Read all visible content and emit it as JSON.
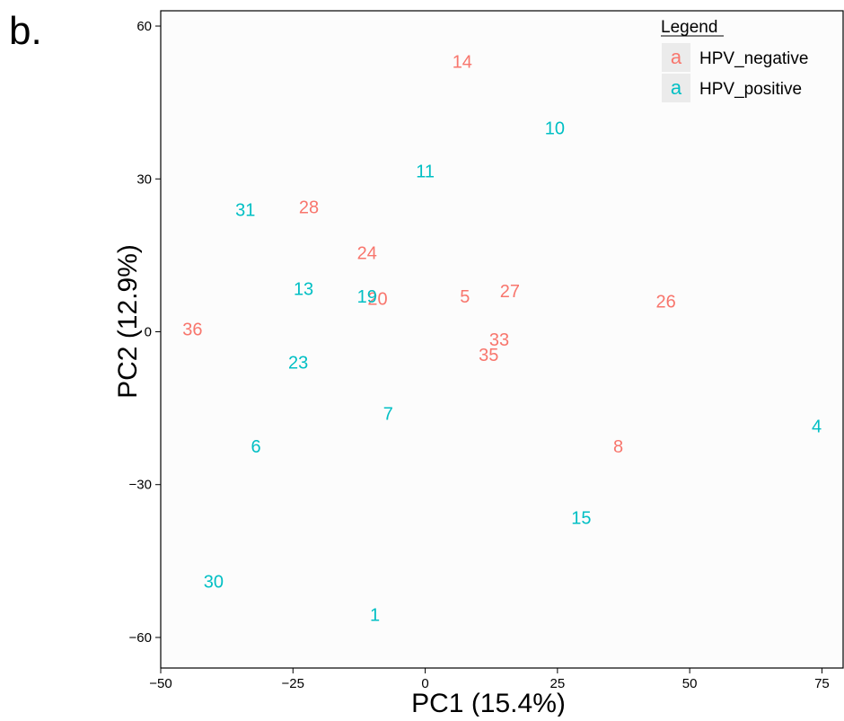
{
  "panel_label": "b.",
  "chart_data": {
    "type": "scatter",
    "xlabel": "PC1 (15.4%)",
    "ylabel": "PC2 (12.9%)",
    "xlim": [
      -50,
      79
    ],
    "ylim": [
      -66,
      63
    ],
    "x_ticks": [
      -50,
      -25,
      0,
      25,
      50,
      75
    ],
    "x_tick_labels": [
      "−50",
      "−25",
      "0",
      "25",
      "50",
      "75"
    ],
    "y_ticks": [
      -60,
      -30,
      0,
      30,
      60
    ],
    "y_tick_labels": [
      "−60",
      "−30",
      "0",
      "30",
      "60"
    ],
    "grid": false,
    "legend": {
      "title": "Legend",
      "position": "top-right",
      "key_glyph": "a",
      "entries": [
        {
          "label": "HPV_negative",
          "color": "#F8766D"
        },
        {
          "label": "HPV_positive",
          "color": "#00BFC4"
        }
      ]
    },
    "series": [
      {
        "name": "HPV_negative",
        "color": "#F8766D",
        "points": [
          {
            "label": "14",
            "x": 7,
            "y": 53
          },
          {
            "label": "28",
            "x": -22,
            "y": 24.5
          },
          {
            "label": "24",
            "x": -11,
            "y": 15.5
          },
          {
            "label": "20",
            "x": -9,
            "y": 6.5
          },
          {
            "label": "5",
            "x": 7.5,
            "y": 7
          },
          {
            "label": "27",
            "x": 16,
            "y": 8
          },
          {
            "label": "26",
            "x": 45.5,
            "y": 6
          },
          {
            "label": "36",
            "x": -44,
            "y": 0.5
          },
          {
            "label": "33",
            "x": 14,
            "y": -1.5
          },
          {
            "label": "35",
            "x": 12,
            "y": -4.5
          },
          {
            "label": "8",
            "x": 36.5,
            "y": -22.5
          }
        ]
      },
      {
        "name": "HPV_positive",
        "color": "#00BFC4",
        "points": [
          {
            "label": "10",
            "x": 24.5,
            "y": 40
          },
          {
            "label": "11",
            "x": 0,
            "y": 31.5
          },
          {
            "label": "31",
            "x": -34,
            "y": 24
          },
          {
            "label": "13",
            "x": -23,
            "y": 8.5
          },
          {
            "label": "19",
            "x": -11,
            "y": 7
          },
          {
            "label": "23",
            "x": -24,
            "y": -6
          },
          {
            "label": "7",
            "x": -7,
            "y": -16
          },
          {
            "label": "6",
            "x": -32,
            "y": -22.5
          },
          {
            "label": "4",
            "x": 74,
            "y": -18.5
          },
          {
            "label": "15",
            "x": 29.5,
            "y": -36.5
          },
          {
            "label": "30",
            "x": -40,
            "y": -49
          },
          {
            "label": "1",
            "x": -9.5,
            "y": -55.5
          }
        ]
      }
    ]
  }
}
